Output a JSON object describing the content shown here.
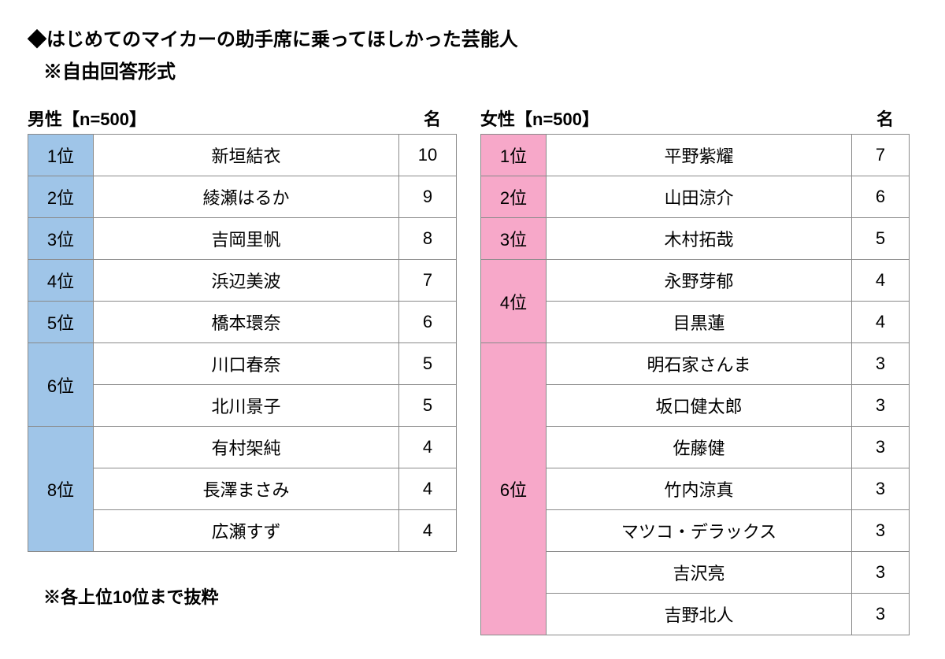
{
  "title": "◆はじめてのマイカーの助手席に乗ってほしかった芸能人",
  "subtitle": "※自由回答形式",
  "footnote": "※各上位10位まで抜粋",
  "male": {
    "header_left": "男性【n=500】",
    "header_right": "名",
    "rank_bg": "#9fc5e8",
    "rows": [
      {
        "rank": "1位",
        "span": 1,
        "name": "新垣結衣",
        "count": "10"
      },
      {
        "rank": "2位",
        "span": 1,
        "name": "綾瀬はるか",
        "count": "9"
      },
      {
        "rank": "3位",
        "span": 1,
        "name": "吉岡里帆",
        "count": "8"
      },
      {
        "rank": "4位",
        "span": 1,
        "name": "浜辺美波",
        "count": "7"
      },
      {
        "rank": "5位",
        "span": 1,
        "name": "橋本環奈",
        "count": "6"
      },
      {
        "rank": "6位",
        "span": 2,
        "name": "川口春奈",
        "count": "5"
      },
      {
        "rank": null,
        "span": 0,
        "name": "北川景子",
        "count": "5"
      },
      {
        "rank": "8位",
        "span": 3,
        "name": "有村架純",
        "count": "4"
      },
      {
        "rank": null,
        "span": 0,
        "name": "長澤まさみ",
        "count": "4"
      },
      {
        "rank": null,
        "span": 0,
        "name": "広瀬すず",
        "count": "4"
      }
    ]
  },
  "female": {
    "header_left": "女性【n=500】",
    "header_right": "名",
    "rank_bg": "#f7a8c9",
    "rows": [
      {
        "rank": "1位",
        "span": 1,
        "name": "平野紫耀",
        "count": "7"
      },
      {
        "rank": "2位",
        "span": 1,
        "name": "山田涼介",
        "count": "6"
      },
      {
        "rank": "3位",
        "span": 1,
        "name": "木村拓哉",
        "count": "5"
      },
      {
        "rank": "4位",
        "span": 2,
        "name": "永野芽郁",
        "count": "4"
      },
      {
        "rank": null,
        "span": 0,
        "name": "目黒蓮",
        "count": "4"
      },
      {
        "rank": "6位",
        "span": 7,
        "name": "明石家さんま",
        "count": "3"
      },
      {
        "rank": null,
        "span": 0,
        "name": "坂口健太郎",
        "count": "3"
      },
      {
        "rank": null,
        "span": 0,
        "name": "佐藤健",
        "count": "3"
      },
      {
        "rank": null,
        "span": 0,
        "name": "竹内涼真",
        "count": "3"
      },
      {
        "rank": null,
        "span": 0,
        "name": "マツコ・デラックス",
        "count": "3"
      },
      {
        "rank": null,
        "span": 0,
        "name": "吉沢亮",
        "count": "3"
      },
      {
        "rank": null,
        "span": 0,
        "name": "吉野北人",
        "count": "3"
      }
    ]
  }
}
